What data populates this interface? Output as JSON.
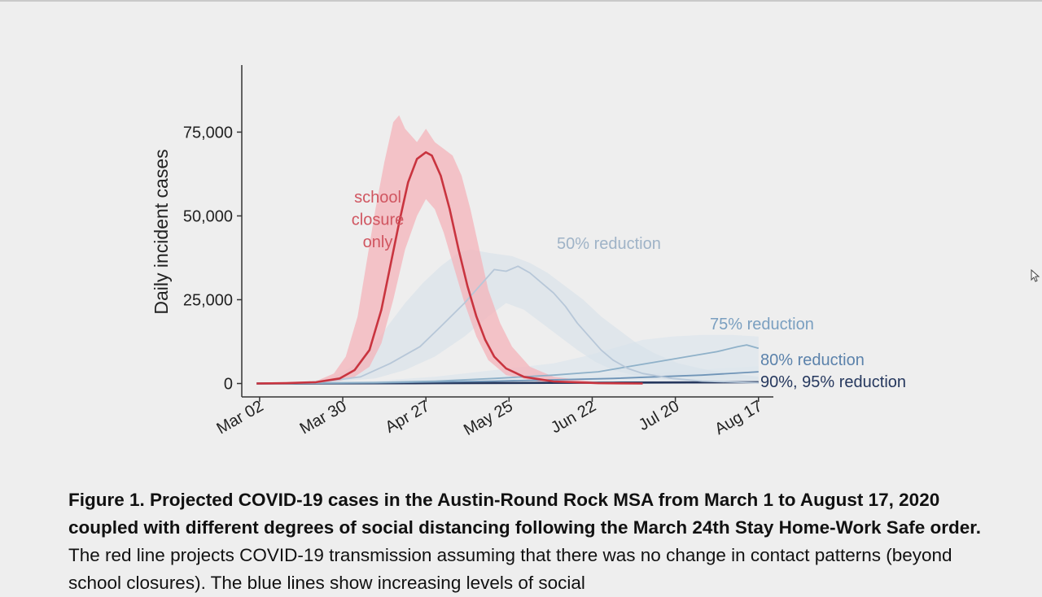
{
  "chart_data": {
    "type": "line",
    "ylabel": "Daily incident cases",
    "y_ticks": [
      {
        "value": 0,
        "label": "0"
      },
      {
        "value": 25000,
        "label": "25,000"
      },
      {
        "value": 50000,
        "label": "50,000"
      },
      {
        "value": 75000,
        "label": "75,000"
      }
    ],
    "x_ticks": [
      {
        "day": 1,
        "label": "Mar 02"
      },
      {
        "day": 29,
        "label": "Mar 30"
      },
      {
        "day": 57,
        "label": "Apr 27"
      },
      {
        "day": 85,
        "label": "May 25"
      },
      {
        "day": 113,
        "label": "Jun 22"
      },
      {
        "day": 141,
        "label": "Jul 20"
      },
      {
        "day": 169,
        "label": "Aug 17"
      }
    ],
    "x_range_days": [
      -5,
      174
    ],
    "ylim": [
      -4000,
      95000
    ],
    "grid": false,
    "series": [
      {
        "name": "school closure only",
        "color": "#c9343f",
        "band_color": "#f4b3b9",
        "points": [
          [
            0,
            0
          ],
          [
            10,
            100
          ],
          [
            20,
            400
          ],
          [
            28,
            1500
          ],
          [
            33,
            4000
          ],
          [
            38,
            10000
          ],
          [
            42,
            22000
          ],
          [
            45,
            35000
          ],
          [
            48,
            48000
          ],
          [
            51,
            60000
          ],
          [
            54,
            67000
          ],
          [
            57,
            69000
          ],
          [
            59,
            68000
          ],
          [
            62,
            62000
          ],
          [
            65,
            52000
          ],
          [
            68,
            40000
          ],
          [
            71,
            29000
          ],
          [
            74,
            20000
          ],
          [
            77,
            13000
          ],
          [
            80,
            8000
          ],
          [
            84,
            4500
          ],
          [
            90,
            2000
          ],
          [
            100,
            600
          ],
          [
            115,
            100
          ],
          [
            130,
            0
          ]
        ],
        "lower": [
          [
            0,
            0
          ],
          [
            20,
            200
          ],
          [
            28,
            800
          ],
          [
            33,
            2000
          ],
          [
            38,
            5000
          ],
          [
            42,
            12000
          ],
          [
            46,
            25000
          ],
          [
            50,
            40000
          ],
          [
            54,
            50000
          ],
          [
            57,
            55000
          ],
          [
            60,
            52000
          ],
          [
            63,
            45000
          ],
          [
            66,
            36000
          ],
          [
            70,
            24000
          ],
          [
            74,
            14000
          ],
          [
            78,
            7000
          ],
          [
            84,
            2500
          ],
          [
            95,
            500
          ],
          [
            115,
            0
          ],
          [
            130,
            0
          ]
        ],
        "upper": [
          [
            0,
            0
          ],
          [
            20,
            700
          ],
          [
            26,
            3000
          ],
          [
            30,
            8000
          ],
          [
            34,
            20000
          ],
          [
            37,
            36000
          ],
          [
            40,
            52000
          ],
          [
            43,
            66000
          ],
          [
            46,
            78000
          ],
          [
            48,
            80000
          ],
          [
            50,
            76000
          ],
          [
            54,
            72000
          ],
          [
            57,
            76000
          ],
          [
            60,
            72000
          ],
          [
            63,
            70000
          ],
          [
            66,
            68000
          ],
          [
            69,
            62000
          ],
          [
            72,
            52000
          ],
          [
            75,
            40000
          ],
          [
            78,
            28000
          ],
          [
            82,
            18000
          ],
          [
            86,
            11000
          ],
          [
            92,
            5000
          ],
          [
            100,
            2000
          ],
          [
            115,
            400
          ],
          [
            130,
            0
          ]
        ]
      },
      {
        "name": "50% reduction",
        "label": "50% reduction",
        "color": "#b7c7d8",
        "band_color": "#d7e1ea",
        "points": [
          [
            0,
            0
          ],
          [
            20,
            300
          ],
          [
            35,
            2000
          ],
          [
            45,
            6000
          ],
          [
            55,
            11000
          ],
          [
            62,
            17000
          ],
          [
            70,
            24000
          ],
          [
            76,
            30000
          ],
          [
            80,
            34000
          ],
          [
            84,
            33500
          ],
          [
            88,
            35000
          ],
          [
            92,
            33000
          ],
          [
            96,
            30000
          ],
          [
            100,
            27000
          ],
          [
            104,
            23000
          ],
          [
            108,
            18000
          ],
          [
            112,
            14000
          ],
          [
            116,
            10000
          ],
          [
            120,
            7000
          ],
          [
            125,
            4500
          ],
          [
            130,
            3000
          ],
          [
            140,
            1500
          ],
          [
            150,
            700
          ],
          [
            169,
            200
          ]
        ],
        "lower": [
          [
            0,
            0
          ],
          [
            20,
            100
          ],
          [
            40,
            1500
          ],
          [
            50,
            4000
          ],
          [
            60,
            8000
          ],
          [
            70,
            14000
          ],
          [
            78,
            20000
          ],
          [
            84,
            24000
          ],
          [
            90,
            22000
          ],
          [
            96,
            18000
          ],
          [
            102,
            14000
          ],
          [
            108,
            10000
          ],
          [
            114,
            6500
          ],
          [
            120,
            4000
          ],
          [
            130,
            1800
          ],
          [
            145,
            600
          ],
          [
            169,
            100
          ]
        ],
        "upper": [
          [
            0,
            0
          ],
          [
            15,
            300
          ],
          [
            25,
            1500
          ],
          [
            32,
            5000
          ],
          [
            38,
            10000
          ],
          [
            44,
            17000
          ],
          [
            50,
            24000
          ],
          [
            56,
            30000
          ],
          [
            62,
            35000
          ],
          [
            68,
            39000
          ],
          [
            72,
            40000
          ],
          [
            78,
            39000
          ],
          [
            86,
            38000
          ],
          [
            92,
            36000
          ],
          [
            98,
            33000
          ],
          [
            104,
            29000
          ],
          [
            110,
            25000
          ],
          [
            116,
            20000
          ],
          [
            122,
            16000
          ],
          [
            128,
            12000
          ],
          [
            134,
            9000
          ],
          [
            142,
            6000
          ],
          [
            152,
            4000
          ],
          [
            169,
            2000
          ]
        ]
      },
      {
        "name": "75% reduction",
        "label": "75% reduction",
        "color": "#8fb1c9",
        "band_color": "#dbe5ed",
        "points": [
          [
            0,
            0
          ],
          [
            40,
            300
          ],
          [
            60,
            700
          ],
          [
            80,
            1500
          ],
          [
            100,
            2500
          ],
          [
            115,
            3500
          ],
          [
            125,
            5000
          ],
          [
            135,
            6500
          ],
          [
            145,
            8000
          ],
          [
            155,
            9500
          ],
          [
            162,
            11000
          ],
          [
            165,
            11500
          ],
          [
            169,
            10500
          ]
        ],
        "lower": [
          [
            0,
            0
          ],
          [
            60,
            300
          ],
          [
            90,
            600
          ],
          [
            120,
            1200
          ],
          [
            140,
            2000
          ],
          [
            155,
            3000
          ],
          [
            169,
            3500
          ]
        ],
        "upper": [
          [
            0,
            0
          ],
          [
            40,
            800
          ],
          [
            60,
            2000
          ],
          [
            80,
            4000
          ],
          [
            100,
            6000
          ],
          [
            110,
            8000
          ],
          [
            120,
            10500
          ],
          [
            130,
            13000
          ],
          [
            140,
            14000
          ],
          [
            150,
            14500
          ],
          [
            160,
            14500
          ],
          [
            169,
            14000
          ]
        ]
      },
      {
        "name": "80% reduction",
        "label": "80% reduction",
        "color": "#6f94b7",
        "band_color": "#dfe7ef",
        "points": [
          [
            0,
            0
          ],
          [
            40,
            200
          ],
          [
            80,
            700
          ],
          [
            120,
            1500
          ],
          [
            150,
            2500
          ],
          [
            169,
            3500
          ]
        ],
        "lower": [
          [
            0,
            0
          ],
          [
            80,
            200
          ],
          [
            120,
            600
          ],
          [
            169,
            1200
          ]
        ],
        "upper": [
          [
            0,
            0
          ],
          [
            60,
            600
          ],
          [
            100,
            1800
          ],
          [
            130,
            3000
          ],
          [
            150,
            4200
          ],
          [
            169,
            5200
          ]
        ]
      },
      {
        "name": "90%, 95% reduction",
        "label": "90%, 95% reduction",
        "color": "#26385e",
        "band_color": "#dfe5ee",
        "points": [
          [
            0,
            0
          ],
          [
            60,
            100
          ],
          [
            120,
            250
          ],
          [
            169,
            400
          ]
        ],
        "lower": [
          [
            0,
            0
          ],
          [
            169,
            0
          ]
        ],
        "upper": [
          [
            0,
            0
          ],
          [
            60,
            300
          ],
          [
            120,
            700
          ],
          [
            169,
            1000
          ]
        ]
      }
    ],
    "annotations": [
      {
        "lines": [
          "school",
          "closure",
          "only"
        ],
        "color": "#d05560"
      },
      {
        "lines": [
          "50% reduction"
        ],
        "color": "#9fb3c7"
      },
      {
        "lines": [
          "75% reduction"
        ],
        "color": "#7a9fc0"
      },
      {
        "lines": [
          "80% reduction"
        ],
        "color": "#5b82ab"
      },
      {
        "lines": [
          "90%, 95% reduction"
        ],
        "color": "#26385e"
      }
    ]
  },
  "caption": {
    "bold_text": "Figure 1. Projected COVID-19 cases in the Austin-Round Rock MSA from March 1 to August 17, 2020 coupled with different degrees of social distancing following the March 24th Stay Home-Work Safe order.",
    "regular_text": " The red line projects COVID-19 transmission assuming that there was no change in contact patterns (beyond school closures). The blue lines show increasing levels of social"
  }
}
